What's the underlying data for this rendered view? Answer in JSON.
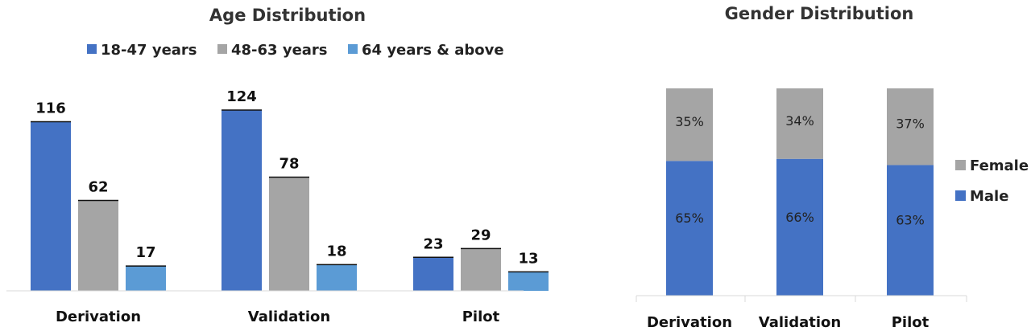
{
  "chart_data": [
    {
      "type": "bar",
      "title": "Age Distribution",
      "categories": [
        "Derivation",
        "Validation",
        "Pilot"
      ],
      "series": [
        {
          "name": "18-47 years",
          "values": [
            116,
            124,
            23
          ],
          "color": "#4472C4"
        },
        {
          "name": "48-63 years",
          "values": [
            62,
            78,
            29
          ],
          "color": "#A5A5A5"
        },
        {
          "name": "64 years & above",
          "values": [
            17,
            18,
            13
          ],
          "color": "#5B9BD5"
        }
      ],
      "data_labels": true,
      "legend": "top",
      "grid": false,
      "ylim": [
        0,
        140
      ]
    },
    {
      "type": "bar",
      "stacked": "percent",
      "title": "Gender Distribution",
      "categories": [
        "Derivation",
        "Validation",
        "Pilot"
      ],
      "series": [
        {
          "name": "Male",
          "values": [
            65,
            66,
            63
          ],
          "labels": [
            "65%",
            "66%",
            "63%"
          ],
          "color": "#4472C4"
        },
        {
          "name": "Female",
          "values": [
            35,
            34,
            37
          ],
          "labels": [
            "35%",
            "34%",
            "37%"
          ],
          "color": "#A5A5A5"
        }
      ],
      "data_labels": true,
      "legend": "right",
      "grid": false,
      "ylim": [
        0,
        100
      ]
    }
  ]
}
